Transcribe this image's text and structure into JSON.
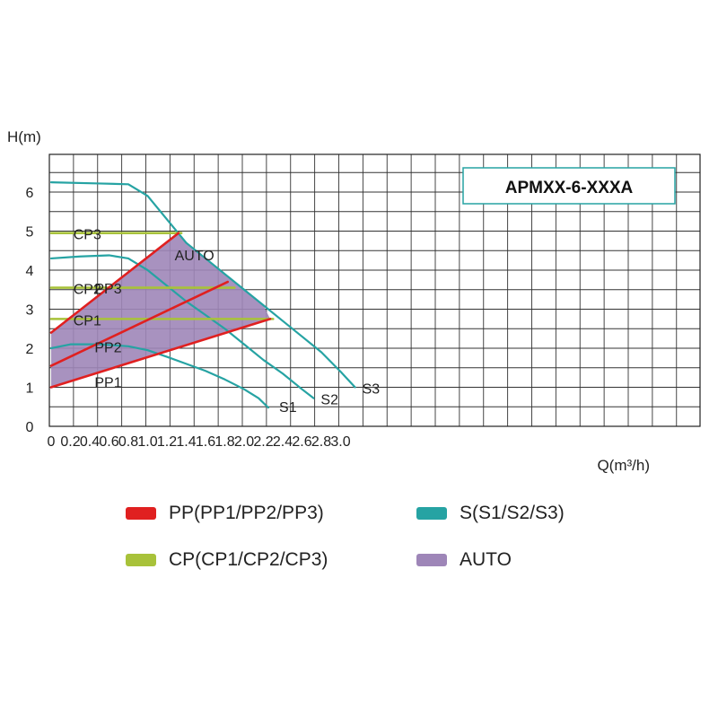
{
  "chart_data": {
    "type": "line",
    "model": "APMXX-6-XXXA",
    "xlabel": "Q(m³/h)",
    "ylabel": "H(m)",
    "xlim": [
      0,
      3.35
    ],
    "ylim": [
      0,
      7
    ],
    "x_ticks": [
      "0",
      "0.2",
      "0.4",
      "0.6",
      "0.8",
      "1.0",
      "1.2",
      "1.4",
      "1.6",
      "1.8",
      "2.0",
      "2.2",
      "2.4",
      "2.6",
      "2.8",
      "3.0"
    ],
    "y_ticks": [
      "0",
      "1",
      "2",
      "3",
      "4",
      "5",
      "6"
    ],
    "grid": true,
    "colors": {
      "PP": "#e02020",
      "S": "#26a3a3",
      "CP": "#a8c23a",
      "AUTO": "#9e86b8",
      "grid": "#333333"
    },
    "series": [
      {
        "name": "S3",
        "group": "S",
        "x": [
          0,
          0.5,
          0.8,
          1.0,
          1.2,
          1.4,
          1.6,
          1.8,
          2.0,
          2.2,
          2.4,
          2.6,
          2.8,
          3.0,
          3.15
        ],
        "y": [
          6.25,
          6.22,
          6.2,
          5.9,
          5.3,
          4.7,
          4.3,
          3.9,
          3.5,
          3.1,
          2.7,
          2.3,
          1.9,
          1.4,
          1.0
        ]
      },
      {
        "name": "S2",
        "group": "S",
        "x": [
          0,
          0.3,
          0.6,
          0.8,
          1.0,
          1.2,
          1.4,
          1.6,
          1.8,
          2.0,
          2.2,
          2.4,
          2.6,
          2.72
        ],
        "y": [
          4.3,
          4.35,
          4.38,
          4.3,
          4.0,
          3.6,
          3.2,
          2.85,
          2.5,
          2.1,
          1.7,
          1.35,
          0.95,
          0.72
        ]
      },
      {
        "name": "S1",
        "group": "S",
        "x": [
          0,
          0.2,
          0.5,
          0.8,
          1.0,
          1.2,
          1.4,
          1.6,
          1.8,
          2.0,
          2.15,
          2.25
        ],
        "y": [
          2.0,
          2.1,
          2.1,
          2.05,
          1.95,
          1.78,
          1.6,
          1.42,
          1.2,
          0.95,
          0.72,
          0.48
        ]
      },
      {
        "name": "CP3",
        "group": "CP",
        "x": [
          0,
          1.35
        ],
        "y": [
          4.95,
          4.95
        ]
      },
      {
        "name": "CP2",
        "group": "CP",
        "x": [
          0,
          1.9
        ],
        "y": [
          3.55,
          3.55
        ]
      },
      {
        "name": "CP1",
        "group": "CP",
        "x": [
          0,
          2.3
        ],
        "y": [
          2.75,
          2.75
        ]
      },
      {
        "name": "PP3",
        "group": "PP",
        "x": [
          0,
          1.32
        ],
        "y": [
          2.4,
          4.95
        ]
      },
      {
        "name": "PP2",
        "group": "PP",
        "x": [
          0,
          1.83
        ],
        "y": [
          1.55,
          3.7
        ]
      },
      {
        "name": "PP1",
        "group": "PP",
        "x": [
          0,
          2.27
        ],
        "y": [
          1.0,
          2.75
        ]
      }
    ],
    "auto_region": {
      "name": "AUTO",
      "x": [
        0,
        1.32,
        1.4,
        1.6,
        1.8,
        2.0,
        2.2,
        2.27,
        0
      ],
      "y": [
        2.4,
        4.95,
        4.7,
        4.3,
        3.9,
        3.5,
        3.1,
        2.75,
        1.0
      ]
    },
    "curve_labels": [
      {
        "text": "S1",
        "x": 2.27,
        "y": 0.48,
        "dx": 10,
        "dy": 5
      },
      {
        "text": "S2",
        "x": 2.72,
        "y": 0.72,
        "dx": 8,
        "dy": 7
      },
      {
        "text": "S3",
        "x": 3.15,
        "y": 1.0,
        "dx": 8,
        "dy": 7
      },
      {
        "text": "CP3",
        "x": 0.23,
        "y": 4.95,
        "dx": 0,
        "dy": 7
      },
      {
        "text": "CP2",
        "x": 0.23,
        "y": 3.55,
        "dx": 0,
        "dy": 7
      },
      {
        "text": "CP1",
        "x": 0.23,
        "y": 2.75,
        "dx": 0,
        "dy": 7
      },
      {
        "text": "PP3",
        "x": 0.45,
        "y": 3.4,
        "dx": 0,
        "dy": 0
      },
      {
        "text": "PP2",
        "x": 0.45,
        "y": 1.9,
        "dx": 0,
        "dy": 0
      },
      {
        "text": "PP1",
        "x": 0.45,
        "y": 1.0,
        "dx": 0,
        "dy": 0
      },
      {
        "text": "AUTO",
        "x": 1.28,
        "y": 4.25,
        "dx": 0,
        "dy": 0
      }
    ]
  },
  "legend": [
    {
      "label": "PP(PP1/PP2/PP3)",
      "color": "#e02020"
    },
    {
      "label": "S(S1/S2/S3)",
      "color": "#26a3a3"
    },
    {
      "label": "CP(CP1/CP2/CP3)",
      "color": "#a8c23a"
    },
    {
      "label": "AUTO",
      "color": "#9e86b8"
    }
  ]
}
